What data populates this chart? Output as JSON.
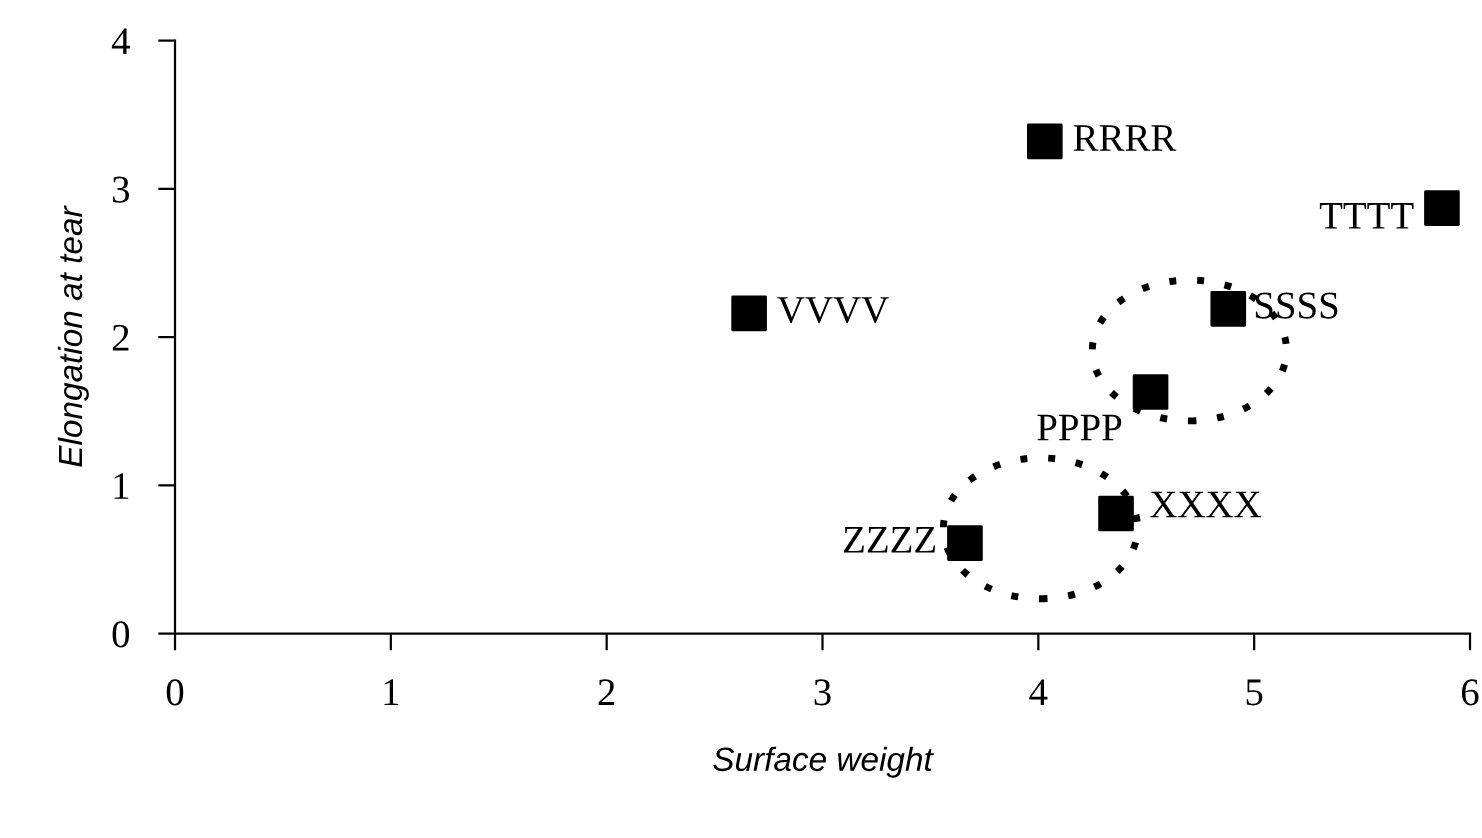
{
  "chart_data": {
    "type": "scatter",
    "xlabel": "Surface weight",
    "ylabel": "Elongation at tear",
    "x": [
      2.66,
      4.03,
      5.87,
      4.88,
      4.52,
      4.36,
      3.66
    ],
    "series": [
      {
        "color": "#000000",
        "values": [
          2.16,
          3.32,
          2.87,
          2.19,
          1.63,
          0.81,
          0.61
        ]
      }
    ],
    "marker": "square",
    "grid": false,
    "legend": false,
    "xlim": [
      0,
      6
    ],
    "xticks": [
      0,
      1,
      2,
      3,
      4,
      5,
      6
    ],
    "ylim": [
      0,
      4
    ],
    "yticks": [
      0,
      1,
      2,
      3,
      4
    ],
    "annotations": [
      {
        "text": "VVVV",
        "x": 2.66,
        "y": 2.16
      },
      {
        "text": "RRRR",
        "x": 4.03,
        "y": 3.32
      },
      {
        "text": "TTTT",
        "x": 5.87,
        "y": 2.87
      },
      {
        "text": "SSSS",
        "x": 4.88,
        "y": 2.19
      },
      {
        "text": "PPPP",
        "x": 4.52,
        "y": 1.63
      },
      {
        "text": "XXXX",
        "x": 4.36,
        "y": 0.81
      },
      {
        "text": "ZZZZ",
        "x": 3.66,
        "y": 0.61
      }
    ]
  }
}
